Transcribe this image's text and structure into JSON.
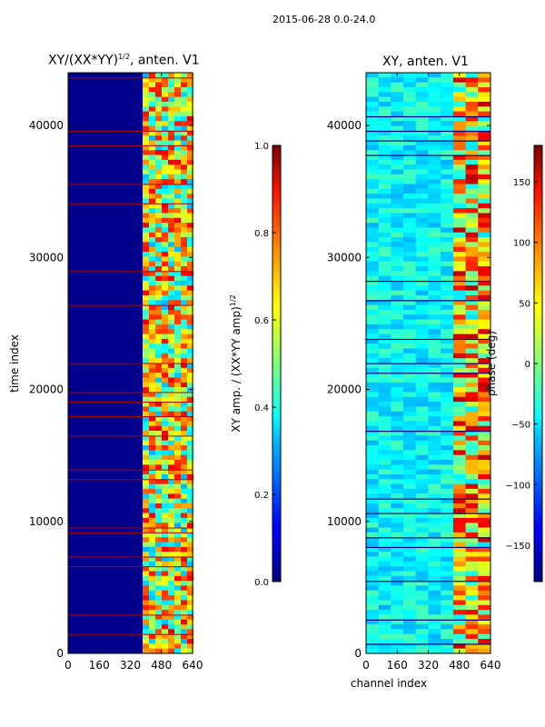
{
  "figure": {
    "suptitle": "2015-06-28 0.0-24.0"
  },
  "chart_data": [
    {
      "type": "heatmap",
      "title_main": "XY/(XX*YY)",
      "title_exp": "1/2",
      "title_tail": ", anten. V1",
      "xlabel": "",
      "ylabel": "time index",
      "xlim": [
        0,
        640
      ],
      "ylim": [
        0,
        44000
      ],
      "xticks": [
        0,
        160,
        320,
        480,
        640
      ],
      "yticks": [
        0,
        10000,
        20000,
        30000,
        40000
      ],
      "colorbar": {
        "label_main": "XY amp. / (XX*YY amp)",
        "label_exp": "1/2",
        "range": [
          0.0,
          1.0
        ],
        "ticks": [
          "0.0",
          "0.2",
          "0.4",
          "0.6",
          "0.8",
          "1.0"
        ]
      }
    },
    {
      "type": "heatmap",
      "title_main": "XY, anten. V1",
      "xlabel": "channel index",
      "ylabel": "",
      "xlim": [
        0,
        640
      ],
      "ylim": [
        0,
        44000
      ],
      "xticks": [
        0,
        160,
        320,
        480,
        640
      ],
      "yticks": [
        0,
        10000,
        20000,
        30000,
        40000
      ],
      "colorbar": {
        "label_main": "phase (deg)",
        "range": [
          -180,
          180
        ],
        "ticks": [
          "−150",
          "−100",
          "−50",
          "0",
          "50",
          "100",
          "150"
        ]
      }
    }
  ]
}
